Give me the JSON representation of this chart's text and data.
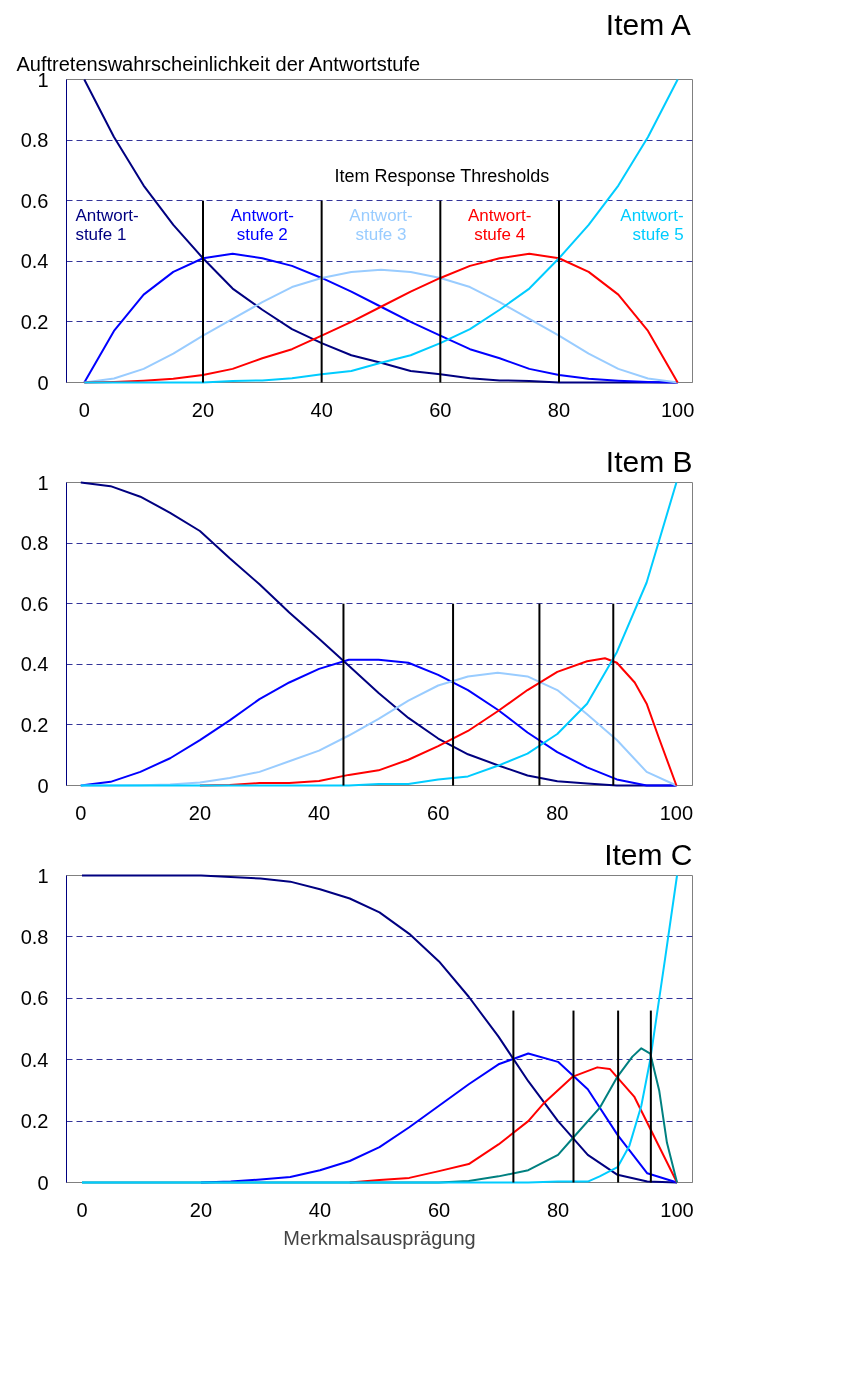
{
  "chart_data": [
    {
      "type": "line",
      "title": "Item A",
      "ylabel": "Auftretenswahrscheinlichkeit der Antwortstufe",
      "annotations": [
        "Item Response Thresholds"
      ],
      "x": [
        0,
        5,
        10,
        15,
        20,
        25,
        30,
        35,
        40,
        45,
        50,
        55,
        60,
        65,
        70,
        75,
        80,
        85,
        90,
        95,
        100
      ],
      "xlim": [
        -3,
        102.5
      ],
      "xticks": [
        0,
        20,
        40,
        60,
        80,
        100
      ],
      "ylim": [
        0,
        1
      ],
      "yticks": [
        0,
        0.2,
        0.4,
        0.6,
        0.8,
        1
      ],
      "grid": "y",
      "legend": false,
      "series": [
        {
          "name": "Antwort-\nstufe 1",
          "color": "#000080",
          "values": [
            1,
            0.81,
            0.65,
            0.52,
            0.41,
            0.31,
            0.24,
            0.176,
            0.13,
            0.09,
            0.065,
            0.038,
            0.027,
            0.014,
            0.007,
            0.005,
            0,
            0,
            0,
            0,
            0
          ]
        },
        {
          "name": "Antwort-\nstufe 2",
          "color": "#0000ff",
          "values": [
            0,
            0.17,
            0.29,
            0.365,
            0.41,
            0.425,
            0.41,
            0.385,
            0.345,
            0.3,
            0.25,
            0.2,
            0.155,
            0.11,
            0.08,
            0.045,
            0.025,
            0.012,
            0.006,
            0.002,
            0
          ]
        },
        {
          "name": "Antwort-\nstufe 3",
          "color": "#99ccff",
          "values": [
            0,
            0.013,
            0.045,
            0.095,
            0.155,
            0.21,
            0.265,
            0.315,
            0.345,
            0.365,
            0.372,
            0.365,
            0.345,
            0.315,
            0.265,
            0.21,
            0.155,
            0.095,
            0.045,
            0.013,
            0
          ]
        },
        {
          "name": "Antwort-\nstufe 4",
          "color": "#ff0000",
          "values": [
            0,
            0.002,
            0.006,
            0.012,
            0.025,
            0.045,
            0.08,
            0.11,
            0.155,
            0.2,
            0.25,
            0.3,
            0.345,
            0.385,
            0.41,
            0.425,
            0.41,
            0.365,
            0.29,
            0.17,
            0
          ]
        },
        {
          "name": "Antwort-\nstufe 5",
          "color": "#00ccff",
          "values": [
            0,
            0,
            0,
            0,
            0,
            0.005,
            0.007,
            0.014,
            0.027,
            0.038,
            0.065,
            0.09,
            0.13,
            0.176,
            0.24,
            0.31,
            0.41,
            0.52,
            0.65,
            0.81,
            1
          ]
        },
        {
          "color": "#000000",
          "x": [
            20,
            20
          ],
          "values": [
            0,
            0.6
          ]
        },
        {
          "color": "#000000",
          "x": [
            40,
            40
          ],
          "values": [
            0,
            0.6
          ]
        },
        {
          "color": "#000000",
          "x": [
            60,
            60
          ],
          "values": [
            0,
            0.6
          ]
        },
        {
          "color": "#000000",
          "x": [
            80,
            80
          ],
          "values": [
            0,
            0.6
          ]
        }
      ]
    },
    {
      "type": "line",
      "title": "Item B",
      "x": [
        0,
        5,
        10,
        15,
        20,
        25,
        30,
        35,
        40,
        45,
        50,
        55,
        60,
        65,
        70,
        75,
        80,
        85,
        90,
        95,
        100
      ],
      "xlim": [
        -2.4,
        102.7
      ],
      "xticks": [
        0,
        20,
        40,
        60,
        80,
        100
      ],
      "ylim": [
        0,
        1
      ],
      "yticks": [
        0,
        0.2,
        0.4,
        0.6,
        0.8,
        1
      ],
      "grid": "y",
      "legend": false,
      "series": [
        {
          "color": "#000080",
          "values": [
            1,
            0.988,
            0.953,
            0.9,
            0.84,
            0.75,
            0.664,
            0.571,
            0.484,
            0.395,
            0.305,
            0.223,
            0.155,
            0.103,
            0.067,
            0.033,
            0.014,
            0.007,
            0,
            0,
            0
          ]
        },
        {
          "color": "#0000ff",
          "values": [
            0,
            0.012,
            0.045,
            0.09,
            0.15,
            0.215,
            0.285,
            0.34,
            0.385,
            0.415,
            0.415,
            0.405,
            0.365,
            0.315,
            0.25,
            0.175,
            0.11,
            0.06,
            0.02,
            0,
            0
          ]
        },
        {
          "color": "#99ccff",
          "values": [
            0,
            0,
            0.001,
            0.003,
            0.01,
            0.025,
            0.045,
            0.08,
            0.115,
            0.165,
            0.22,
            0.28,
            0.33,
            0.36,
            0.372,
            0.36,
            0.315,
            0.235,
            0.15,
            0.045,
            0
          ]
        },
        {
          "color": "#ff0000",
          "x": [
            20,
            25,
            30,
            35,
            40,
            45,
            50,
            55,
            60,
            65,
            70,
            75,
            80,
            85,
            88,
            90,
            93,
            95,
            97,
            100
          ],
          "values": [
            0,
            0.002,
            0.008,
            0.008,
            0.015,
            0.035,
            0.05,
            0.085,
            0.13,
            0.18,
            0.245,
            0.315,
            0.375,
            0.41,
            0.42,
            0.405,
            0.34,
            0.27,
            0.16,
            0
          ]
        },
        {
          "color": "#00ccff",
          "values": [
            0,
            0,
            0,
            0,
            0,
            0,
            0,
            0,
            0,
            0,
            0.005,
            0.005,
            0.02,
            0.03,
            0.065,
            0.105,
            0.17,
            0.27,
            0.44,
            0.67,
            1
          ]
        },
        {
          "color": "#000000",
          "x": [
            44.1,
            44.1
          ],
          "values": [
            0,
            0.6
          ]
        },
        {
          "color": "#000000",
          "x": [
            62.5,
            62.5
          ],
          "values": [
            0,
            0.6
          ]
        },
        {
          "color": "#000000",
          "x": [
            77,
            77
          ],
          "values": [
            0,
            0.6
          ]
        },
        {
          "color": "#000000",
          "x": [
            89.4,
            89.4
          ],
          "values": [
            0,
            0.6
          ]
        }
      ]
    },
    {
      "type": "line",
      "title": "Item C",
      "xlabel": "Merkmalsausprägung",
      "x": [
        0,
        5,
        10,
        15,
        20,
        25,
        30,
        35,
        40,
        45,
        50,
        55,
        60,
        65,
        70,
        75,
        80,
        85,
        90,
        95,
        100
      ],
      "xlim": [
        -2.6,
        102.6
      ],
      "xticks": [
        0,
        20,
        40,
        60,
        80,
        100
      ],
      "ylim": [
        0,
        1
      ],
      "yticks": [
        0,
        0.2,
        0.4,
        0.6,
        0.8,
        1
      ],
      "grid": "y",
      "legend": false,
      "series": [
        {
          "color": "#000080",
          "values": [
            1,
            1,
            1,
            1,
            1,
            0.995,
            0.99,
            0.98,
            0.955,
            0.925,
            0.88,
            0.81,
            0.72,
            0.605,
            0.475,
            0.33,
            0.2,
            0.09,
            0.025,
            0.003,
            0
          ]
        },
        {
          "color": "#0000ff",
          "x": [
            20,
            25,
            30,
            35,
            40,
            45,
            50,
            55,
            60,
            65,
            70,
            75,
            80,
            85,
            90,
            95,
            100
          ],
          "values": [
            0,
            0.003,
            0.01,
            0.018,
            0.04,
            0.07,
            0.115,
            0.18,
            0.25,
            0.32,
            0.385,
            0.42,
            0.393,
            0.304,
            0.155,
            0.03,
            0
          ]
        },
        {
          "color": "#ff0000",
          "x": [
            45,
            50,
            55,
            60,
            65,
            70,
            75,
            77.7,
            82.5,
            86.6,
            88.7,
            92.8,
            95.5,
            100
          ],
          "values": [
            0,
            0.008,
            0.015,
            0.037,
            0.06,
            0.124,
            0.2,
            0.26,
            0.345,
            0.375,
            0.37,
            0.28,
            0.175,
            0
          ]
        },
        {
          "color": "#008080",
          "x": [
            0,
            60,
            65,
            70,
            75,
            80,
            82.5,
            87,
            90,
            92.5,
            94,
            95.5,
            97,
            98.3,
            100
          ],
          "values": [
            0,
            0,
            0.005,
            0.02,
            0.04,
            0.09,
            0.145,
            0.243,
            0.345,
            0.41,
            0.437,
            0.42,
            0.3,
            0.13,
            0
          ]
        },
        {
          "color": "#00ccff",
          "x": [
            0,
            75,
            80,
            85,
            87,
            90,
            92,
            94,
            95.5,
            98,
            100
          ],
          "values": [
            0,
            0,
            0.003,
            0.003,
            0.02,
            0.05,
            0.12,
            0.25,
            0.4,
            0.73,
            1
          ]
        },
        {
          "color": "#000000",
          "x": [
            72.5,
            72.5
          ],
          "values": [
            0,
            0.56
          ]
        },
        {
          "color": "#000000",
          "x": [
            82.6,
            82.6
          ],
          "values": [
            0,
            0.56
          ]
        },
        {
          "color": "#000000",
          "x": [
            90.1,
            90.1
          ],
          "values": [
            0,
            0.56
          ]
        },
        {
          "color": "#000000",
          "x": [
            95.6,
            95.6
          ],
          "values": [
            0,
            0.56
          ]
        }
      ]
    }
  ]
}
